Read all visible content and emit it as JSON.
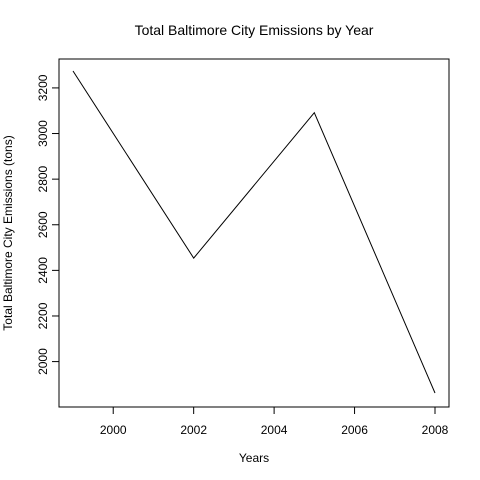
{
  "chart_data": {
    "type": "line",
    "title": "Total Baltimore City Emissions by Year",
    "xlabel": "Years",
    "ylabel": "Total Baltimore City  Emissions (tons)",
    "x": [
      1999,
      2002,
      2005,
      2008
    ],
    "series": [
      {
        "values": [
          3274.18,
          2453.92,
          3091.35,
          1862.28
        ]
      }
    ],
    "xlim": [
      1999,
      2008
    ],
    "ylim": [
      1862.28,
      3274.18
    ],
    "x_ticks": [
      2000,
      2002,
      2004,
      2006,
      2008
    ],
    "y_ticks": [
      2000,
      2200,
      2400,
      2600,
      2800,
      3000,
      3200
    ],
    "x_tick_labels": [
      "2000",
      "2002",
      "2004",
      "2006",
      "2008"
    ],
    "y_tick_labels": [
      "2000",
      "2200",
      "2400",
      "2600",
      "2800",
      "3000",
      "3200"
    ],
    "grid": false,
    "legend": "none",
    "line_color": "#000000"
  }
}
